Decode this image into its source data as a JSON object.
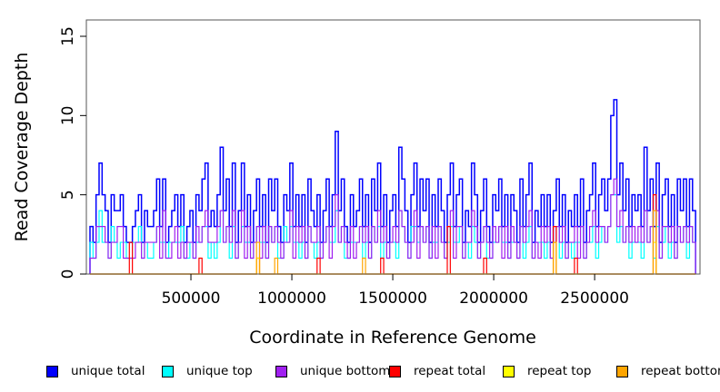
{
  "chart_data": {
    "type": "line",
    "subtype": "step-coverage-histogram-outlines",
    "title": "",
    "xlabel": "Coordinate in Reference Genome",
    "ylabel": "Read Coverage Depth",
    "xlim": [
      -18000,
      3022000
    ],
    "ylim": [
      0,
      16
    ],
    "grid": false,
    "legend_position": "bottom",
    "xticks": [
      {
        "value": 500000,
        "label": "500000"
      },
      {
        "value": 1000000,
        "label": "1000000"
      },
      {
        "value": 1500000,
        "label": "1500000"
      },
      {
        "value": 2000000,
        "label": "2000000"
      },
      {
        "value": 2500000,
        "label": "2500000"
      }
    ],
    "yticks": [
      {
        "value": 0,
        "label": "0"
      },
      {
        "value": 5,
        "label": "5"
      },
      {
        "value": 10,
        "label": "10"
      },
      {
        "value": 15,
        "label": "15"
      }
    ],
    "bin_width": 15000,
    "x_start": 0,
    "series": [
      {
        "name": "unique total",
        "color": "#0000FF",
        "stroke_width": 1.5,
        "values": [
          3,
          2,
          5,
          7,
          5,
          4,
          2,
          5,
          4,
          4,
          5,
          3,
          2,
          2,
          3,
          4,
          5,
          2,
          4,
          3,
          3,
          4,
          6,
          3,
          6,
          2,
          3,
          4,
          5,
          3,
          5,
          2,
          3,
          4,
          2,
          5,
          4,
          6,
          7,
          3,
          4,
          3,
          5,
          8,
          4,
          6,
          3,
          7,
          2,
          4,
          7,
          3,
          5,
          2,
          4,
          6,
          3,
          5,
          2,
          6,
          4,
          6,
          3,
          2,
          5,
          4,
          7,
          3,
          5,
          3,
          5,
          2,
          6,
          4,
          3,
          5,
          2,
          4,
          6,
          3,
          5,
          9,
          4,
          6,
          3,
          2,
          5,
          3,
          4,
          6,
          3,
          5,
          2,
          6,
          4,
          7,
          3,
          5,
          2,
          4,
          5,
          3,
          8,
          6,
          4,
          2,
          5,
          7,
          3,
          6,
          4,
          6,
          2,
          5,
          3,
          6,
          4,
          2,
          5,
          7,
          3,
          5,
          6,
          2,
          4,
          3,
          7,
          5,
          2,
          4,
          6,
          3,
          2,
          5,
          4,
          6,
          3,
          5,
          2,
          5,
          4,
          2,
          6,
          3,
          5,
          7,
          2,
          4,
          3,
          5,
          3,
          5,
          2,
          4,
          6,
          3,
          5,
          2,
          4,
          3,
          5,
          3,
          6,
          2,
          4,
          5,
          7,
          3,
          5,
          6,
          4,
          6,
          10,
          11,
          5,
          7,
          4,
          6,
          3,
          5,
          4,
          5,
          3,
          8,
          4,
          6,
          3,
          7,
          2,
          5,
          6,
          3,
          5,
          2,
          6,
          4,
          6,
          3,
          6,
          4
        ]
      },
      {
        "name": "unique top",
        "color": "#00FFFF",
        "stroke_width": 1.2,
        "values": [
          2,
          1,
          2,
          4,
          2,
          2,
          1,
          3,
          2,
          1,
          2,
          2,
          1,
          1,
          2,
          2,
          3,
          1,
          2,
          1,
          1,
          2,
          3,
          2,
          2,
          1,
          2,
          2,
          2,
          2,
          3,
          1,
          1,
          2,
          1,
          2,
          2,
          3,
          3,
          1,
          2,
          1,
          2,
          4,
          2,
          3,
          1,
          3,
          1,
          2,
          3,
          2,
          2,
          1,
          2,
          3,
          2,
          2,
          1,
          3,
          2,
          3,
          1,
          1,
          3,
          2,
          3,
          2,
          2,
          1,
          2,
          1,
          3,
          2,
          1,
          2,
          1,
          2,
          3,
          2,
          2,
          4,
          2,
          3,
          1,
          1,
          2,
          2,
          2,
          3,
          1,
          2,
          1,
          3,
          2,
          3,
          1,
          2,
          1,
          2,
          2,
          1,
          4,
          3,
          2,
          1,
          3,
          3,
          2,
          3,
          2,
          3,
          1,
          2,
          2,
          3,
          2,
          1,
          2,
          3,
          2,
          2,
          3,
          1,
          2,
          1,
          3,
          2,
          1,
          2,
          3,
          1,
          1,
          2,
          2,
          3,
          2,
          2,
          1,
          2,
          2,
          1,
          3,
          1,
          2,
          3,
          1,
          2,
          2,
          2,
          1,
          2,
          1,
          2,
          3,
          1,
          2,
          1,
          2,
          1,
          2,
          2,
          3,
          1,
          2,
          2,
          3,
          1,
          2,
          3,
          2,
          3,
          5,
          5,
          2,
          3,
          2,
          3,
          1,
          2,
          2,
          2,
          1,
          4,
          2,
          3,
          1,
          3,
          1,
          2,
          3,
          1,
          2,
          1,
          3,
          2,
          3,
          1,
          3,
          2
        ]
      },
      {
        "name": "unique bottom",
        "color": "#A020F0",
        "stroke_width": 1.2,
        "values": [
          1,
          1,
          3,
          3,
          3,
          2,
          1,
          2,
          2,
          3,
          3,
          1,
          1,
          1,
          1,
          2,
          2,
          1,
          2,
          2,
          2,
          2,
          3,
          1,
          4,
          1,
          1,
          2,
          3,
          1,
          2,
          1,
          2,
          2,
          1,
          3,
          2,
          3,
          4,
          2,
          2,
          2,
          3,
          4,
          2,
          3,
          2,
          4,
          1,
          2,
          4,
          1,
          3,
          1,
          2,
          3,
          1,
          3,
          1,
          3,
          2,
          3,
          2,
          1,
          2,
          2,
          4,
          1,
          3,
          2,
          3,
          1,
          3,
          2,
          2,
          3,
          1,
          2,
          3,
          1,
          3,
          5,
          2,
          3,
          2,
          1,
          3,
          1,
          2,
          3,
          2,
          3,
          1,
          3,
          2,
          4,
          2,
          3,
          1,
          2,
          3,
          2,
          4,
          3,
          2,
          1,
          2,
          4,
          1,
          3,
          2,
          3,
          1,
          3,
          1,
          3,
          2,
          1,
          3,
          4,
          1,
          3,
          3,
          1,
          2,
          2,
          4,
          3,
          1,
          2,
          3,
          2,
          1,
          3,
          2,
          3,
          1,
          3,
          1,
          3,
          2,
          1,
          3,
          2,
          3,
          4,
          1,
          2,
          1,
          3,
          2,
          3,
          1,
          2,
          3,
          2,
          3,
          1,
          2,
          2,
          3,
          1,
          3,
          1,
          2,
          3,
          4,
          2,
          3,
          3,
          2,
          3,
          5,
          6,
          3,
          4,
          2,
          3,
          2,
          3,
          2,
          3,
          2,
          4,
          2,
          3,
          2,
          4,
          1,
          3,
          3,
          2,
          3,
          1,
          3,
          2,
          3,
          2,
          3,
          2
        ]
      },
      {
        "name": "repeat total",
        "color": "#FF0000",
        "stroke_width": 1.2,
        "baseline": 0,
        "spikes": [
          [
            13,
            2
          ],
          [
            36,
            1
          ],
          [
            55,
            1
          ],
          [
            75,
            1
          ],
          [
            96,
            1
          ],
          [
            118,
            3
          ],
          [
            130,
            1
          ],
          [
            153,
            3
          ],
          [
            160,
            1
          ],
          [
            186,
            5
          ]
        ]
      },
      {
        "name": "repeat top",
        "color": "#FFFF00",
        "stroke_width": 1.2,
        "baseline": 0,
        "spikes": [
          [
            55,
            1
          ],
          [
            153,
            2
          ],
          [
            186,
            2
          ]
        ]
      },
      {
        "name": "repeat bottom",
        "color": "#FFA500",
        "stroke_width": 1.2,
        "baseline": 0,
        "spikes": [
          [
            55,
            2
          ],
          [
            61,
            1
          ],
          [
            90,
            1
          ],
          [
            153,
            2
          ],
          [
            186,
            4
          ]
        ]
      }
    ]
  }
}
